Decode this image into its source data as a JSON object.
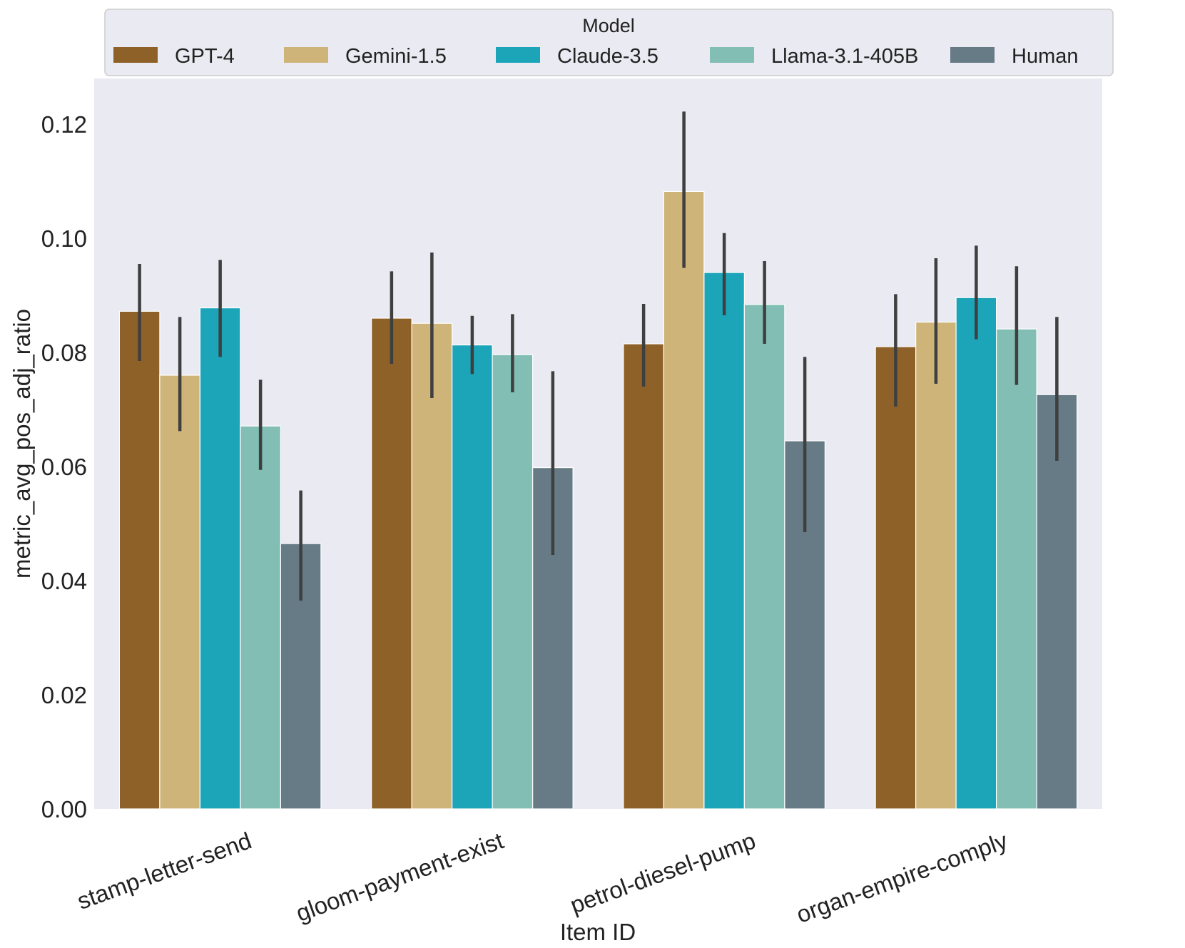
{
  "chart_data": {
    "type": "bar",
    "title": "",
    "xlabel": "Item ID",
    "ylabel": "metric_avg_pos_adj_ratio",
    "ylim": [
      0,
      0.128
    ],
    "yticks": [
      "0.00",
      "0.02",
      "0.04",
      "0.06",
      "0.08",
      "0.10",
      "0.12"
    ],
    "categories": [
      "stamp-letter-send",
      "gloom-payment-exist",
      "petrol-diesel-pump",
      "organ-empire-comply"
    ],
    "legend": {
      "title": "Model",
      "placement": "top"
    },
    "series": [
      {
        "name": "GPT-4",
        "color": "#8e6128",
        "values": [
          0.0872,
          0.086,
          0.0815,
          0.081
        ],
        "ci": [
          [
            0.0785,
            0.0955
          ],
          [
            0.078,
            0.0942
          ],
          [
            0.074,
            0.0885
          ],
          [
            0.0705,
            0.0902
          ]
        ]
      },
      {
        "name": "Gemini-1.5",
        "color": "#cfb47a",
        "values": [
          0.076,
          0.0851,
          0.1082,
          0.0853
        ],
        "ci": [
          [
            0.0662,
            0.0862
          ],
          [
            0.072,
            0.0975
          ],
          [
            0.0948,
            0.1222
          ],
          [
            0.0745,
            0.0965
          ]
        ]
      },
      {
        "name": "Claude-3.5",
        "color": "#1ca5b9",
        "values": [
          0.0878,
          0.0813,
          0.094,
          0.0896
        ],
        "ci": [
          [
            0.0792,
            0.0962
          ],
          [
            0.0762,
            0.0864
          ],
          [
            0.0865,
            0.1009
          ],
          [
            0.0823,
            0.0987
          ]
        ]
      },
      {
        "name": "Llama-3.1-405B",
        "color": "#82beb4",
        "values": [
          0.0671,
          0.0796,
          0.0884,
          0.0841
        ],
        "ci": [
          [
            0.0594,
            0.0752
          ],
          [
            0.073,
            0.0867
          ],
          [
            0.0815,
            0.096
          ],
          [
            0.0743,
            0.0951
          ]
        ]
      },
      {
        "name": "Human",
        "color": "#667b86",
        "values": [
          0.0465,
          0.0598,
          0.0645,
          0.0726
        ],
        "ci": [
          [
            0.0365,
            0.0558
          ],
          [
            0.0445,
            0.0767
          ],
          [
            0.0485,
            0.0792
          ],
          [
            0.061,
            0.0862
          ]
        ]
      }
    ],
    "colors": {
      "plot_background": "#eaeaf2",
      "error_bar": "#3f3f3f",
      "legend_border": "#cccccc"
    }
  }
}
